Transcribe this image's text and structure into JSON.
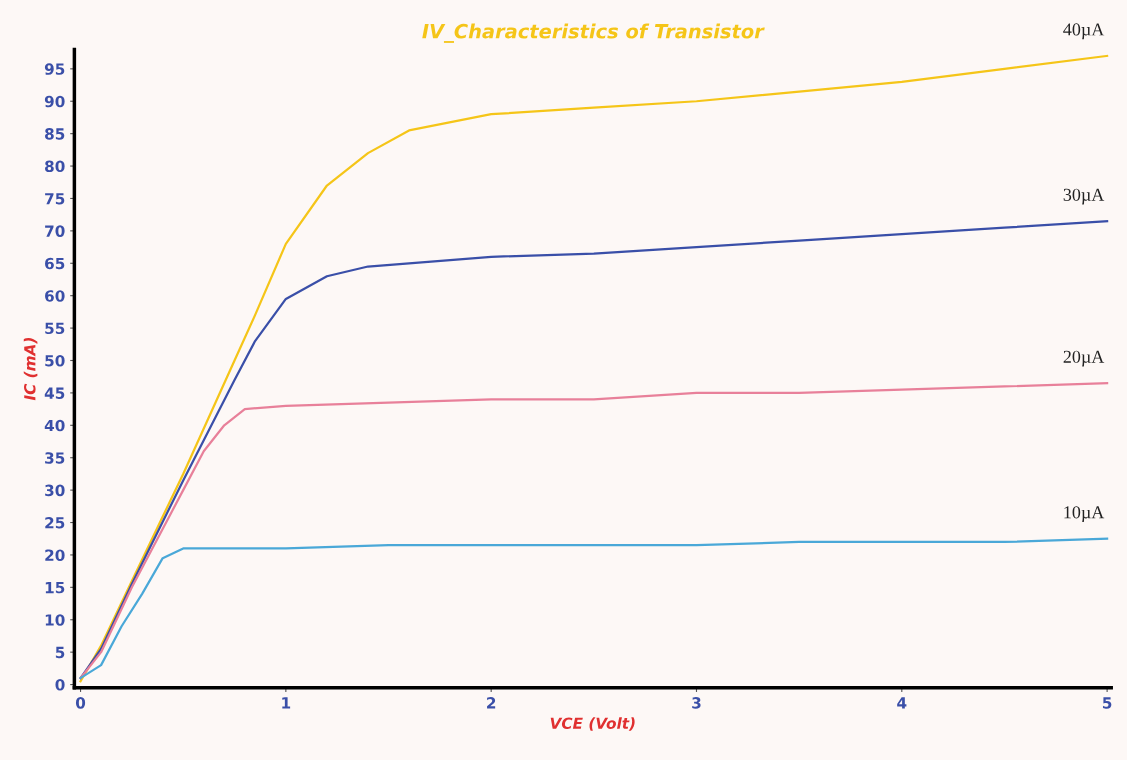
{
  "chart_data": {
    "type": "line",
    "title": "IV_Characteristics of Transistor",
    "xlabel": "VCE (Volt)",
    "ylabel": "IC (mA)",
    "xlim": [
      -0.03,
      5.02
    ],
    "ylim": [
      -0.5,
      98
    ],
    "xticks": [
      0,
      1,
      2,
      3,
      4,
      5
    ],
    "yticks": [
      0,
      5,
      10,
      15,
      20,
      25,
      30,
      35,
      40,
      45,
      50,
      55,
      60,
      65,
      70,
      75,
      80,
      85,
      90,
      95
    ],
    "grid": false,
    "legend": false,
    "marker": "none",
    "line_style": "solid",
    "series": [
      {
        "name": "40µA",
        "color": "#f5c518",
        "x": [
          0,
          0.1,
          0.25,
          0.5,
          0.75,
          0.85,
          1,
          1.2,
          1.4,
          1.6,
          2,
          2.5,
          3,
          3.5,
          4,
          4.5,
          5
        ],
        "values": [
          0.5,
          6,
          16,
          32.5,
          50,
          57,
          68,
          77,
          82,
          85.5,
          88,
          89,
          90,
          91.5,
          93,
          95,
          97
        ]
      },
      {
        "name": "30µA",
        "color": "#3a4fa8",
        "x": [
          0,
          0.1,
          0.25,
          0.5,
          0.75,
          0.85,
          1,
          1.2,
          1.4,
          1.6,
          2,
          2.5,
          3,
          3.5,
          4,
          4.5,
          5
        ],
        "values": [
          1,
          5.5,
          15.5,
          31.5,
          47,
          53,
          59.5,
          63,
          64.5,
          65,
          66,
          66.5,
          67.5,
          68.5,
          69.5,
          70.5,
          71.5
        ]
      },
      {
        "name": "20µA",
        "color": "#e8809a",
        "x": [
          0,
          0.1,
          0.25,
          0.5,
          0.6,
          0.7,
          0.8,
          1,
          1.5,
          2,
          2.5,
          3,
          3.5,
          4,
          4.5,
          5
        ],
        "values": [
          1,
          5,
          15,
          30,
          36,
          40,
          42.5,
          43,
          43.5,
          44,
          44,
          45,
          45,
          45.5,
          46,
          46.5
        ]
      },
      {
        "name": "10µA",
        "color": "#4aa8d8",
        "x": [
          0,
          0.1,
          0.2,
          0.3,
          0.4,
          0.5,
          1,
          1.5,
          2,
          2.5,
          3,
          3.5,
          4,
          4.5,
          5
        ],
        "values": [
          1,
          3,
          9,
          14,
          19.5,
          21,
          21,
          21.5,
          21.5,
          21.5,
          21.5,
          22,
          22,
          22,
          22.5
        ]
      }
    ]
  }
}
